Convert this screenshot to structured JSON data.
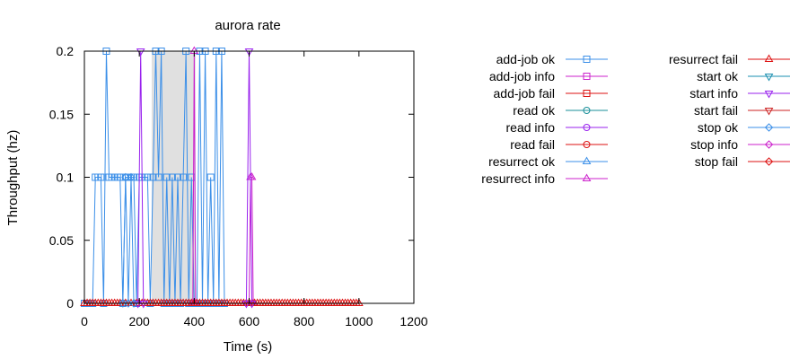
{
  "chart_data": {
    "type": "line",
    "title": "aurora rate",
    "xlabel": "Time (s)",
    "ylabel": "Throughput (hz)",
    "xlim": [
      0,
      1200
    ],
    "ylim": [
      0,
      0.2
    ],
    "xticks": [
      0,
      200,
      400,
      600,
      800,
      1000,
      1200
    ],
    "xtick_labels": [
      "0",
      "200",
      "400",
      "600",
      "800",
      "1000",
      "1200"
    ],
    "yticks": [
      0,
      0.05,
      0.1,
      0.15,
      0.2
    ],
    "ytick_labels": [
      "0",
      "0.05",
      "0.1",
      "0.15",
      "0.2"
    ],
    "shaded_interval": [
      245,
      405
    ],
    "legend_placement": "right, outside plot, two columns",
    "grid": false,
    "series": [
      {
        "name": "add-job ok",
        "color": "#3b8fe8",
        "marker": "square",
        "points": [
          [
            0,
            0
          ],
          [
            10,
            0
          ],
          [
            20,
            0
          ],
          [
            30,
            0
          ],
          [
            40,
            0.1
          ],
          [
            50,
            0.1
          ],
          [
            60,
            0.1
          ],
          [
            70,
            0
          ],
          [
            80,
            0.2
          ],
          [
            90,
            0.1
          ],
          [
            100,
            0.1
          ],
          [
            110,
            0.1
          ],
          [
            120,
            0.1
          ],
          [
            130,
            0.1
          ],
          [
            140,
            0
          ],
          [
            150,
            0.1
          ],
          [
            160,
            0.1
          ],
          [
            170,
            0.1
          ],
          [
            180,
            0.1
          ],
          [
            190,
            0
          ],
          [
            200,
            0.1
          ],
          [
            210,
            0.1
          ],
          [
            220,
            0.1
          ],
          [
            230,
            0.1
          ],
          [
            240,
            0
          ],
          [
            250,
            0.1
          ],
          [
            260,
            0.2
          ],
          [
            270,
            0.1
          ],
          [
            280,
            0.2
          ],
          [
            290,
            0
          ],
          [
            300,
            0.1
          ],
          [
            310,
            0
          ],
          [
            320,
            0.1
          ],
          [
            330,
            0
          ],
          [
            340,
            0.1
          ],
          [
            350,
            0
          ],
          [
            360,
            0.1
          ],
          [
            370,
            0.2
          ],
          [
            380,
            0
          ],
          [
            390,
            0.1
          ],
          [
            400,
            0
          ],
          [
            410,
            0
          ],
          [
            420,
            0.2
          ],
          [
            430,
            0
          ],
          [
            440,
            0.2
          ],
          [
            450,
            0
          ],
          [
            460,
            0.1
          ],
          [
            470,
            0
          ],
          [
            480,
            0.2
          ],
          [
            490,
            0
          ],
          [
            500,
            0.2
          ],
          [
            510,
            0
          ]
        ]
      },
      {
        "name": "add-job info",
        "color": "#cc22cc",
        "marker": "square",
        "points": []
      },
      {
        "name": "add-job fail",
        "color": "#dd1111",
        "marker": "square",
        "points": []
      },
      {
        "name": "read ok",
        "color": "#1a8f9a",
        "marker": "circle",
        "points": []
      },
      {
        "name": "read info",
        "color": "#9922ee",
        "marker": "circle",
        "points": []
      },
      {
        "name": "read fail",
        "color": "#dd1111",
        "marker": "circle",
        "points": []
      },
      {
        "name": "resurrect ok",
        "color": "#3b8fe8",
        "marker": "triangle-up",
        "points": []
      },
      {
        "name": "resurrect info",
        "color": "#cc22cc",
        "marker": "triangle-up",
        "points": [
          [
            395,
            0
          ],
          [
            400,
            0.2
          ],
          [
            405,
            0
          ],
          [
            600,
            0
          ],
          [
            605,
            0.1
          ],
          [
            610,
            0.1
          ],
          [
            615,
            0
          ]
        ]
      },
      {
        "name": "resurrect fail",
        "color": "#dd1111",
        "marker": "triangle-up",
        "points": [
          [
            0,
            0
          ],
          [
            10,
            0
          ],
          [
            20,
            0
          ],
          [
            30,
            0
          ],
          [
            40,
            0
          ],
          [
            50,
            0
          ],
          [
            60,
            0
          ],
          [
            70,
            0
          ],
          [
            80,
            0
          ],
          [
            90,
            0
          ],
          [
            100,
            0
          ],
          [
            110,
            0
          ],
          [
            120,
            0
          ],
          [
            130,
            0
          ],
          [
            140,
            0
          ],
          [
            150,
            0
          ],
          [
            160,
            0
          ],
          [
            170,
            0
          ],
          [
            180,
            0
          ],
          [
            190,
            0
          ],
          [
            200,
            0
          ],
          [
            210,
            0
          ],
          [
            220,
            0
          ],
          [
            230,
            0
          ],
          [
            240,
            0
          ],
          [
            250,
            0
          ],
          [
            260,
            0
          ],
          [
            270,
            0
          ],
          [
            280,
            0
          ],
          [
            290,
            0
          ],
          [
            300,
            0
          ],
          [
            310,
            0
          ],
          [
            320,
            0
          ],
          [
            330,
            0
          ],
          [
            340,
            0
          ],
          [
            350,
            0
          ],
          [
            360,
            0
          ],
          [
            370,
            0
          ],
          [
            380,
            0
          ],
          [
            390,
            0
          ],
          [
            400,
            0
          ],
          [
            410,
            0
          ],
          [
            420,
            0
          ],
          [
            430,
            0
          ],
          [
            440,
            0
          ],
          [
            450,
            0
          ],
          [
            460,
            0
          ],
          [
            470,
            0
          ],
          [
            480,
            0
          ],
          [
            490,
            0
          ],
          [
            500,
            0
          ],
          [
            510,
            0
          ],
          [
            520,
            0
          ],
          [
            530,
            0
          ],
          [
            540,
            0
          ],
          [
            550,
            0
          ],
          [
            560,
            0
          ],
          [
            570,
            0
          ],
          [
            580,
            0
          ],
          [
            590,
            0
          ],
          [
            600,
            0
          ],
          [
            610,
            0
          ],
          [
            620,
            0
          ],
          [
            630,
            0
          ],
          [
            640,
            0
          ],
          [
            650,
            0
          ],
          [
            660,
            0
          ],
          [
            670,
            0
          ],
          [
            680,
            0
          ],
          [
            690,
            0
          ],
          [
            700,
            0
          ],
          [
            710,
            0
          ],
          [
            720,
            0
          ],
          [
            730,
            0
          ],
          [
            740,
            0
          ],
          [
            750,
            0
          ],
          [
            760,
            0
          ],
          [
            770,
            0
          ],
          [
            780,
            0
          ],
          [
            790,
            0
          ],
          [
            800,
            0
          ],
          [
            810,
            0
          ],
          [
            820,
            0
          ],
          [
            830,
            0
          ],
          [
            840,
            0
          ],
          [
            850,
            0
          ],
          [
            860,
            0
          ],
          [
            870,
            0
          ],
          [
            880,
            0
          ],
          [
            890,
            0
          ],
          [
            900,
            0
          ],
          [
            910,
            0
          ],
          [
            920,
            0
          ],
          [
            930,
            0
          ],
          [
            940,
            0
          ],
          [
            950,
            0
          ],
          [
            960,
            0
          ],
          [
            970,
            0
          ],
          [
            980,
            0
          ],
          [
            990,
            0
          ],
          [
            1000,
            0
          ]
        ]
      },
      {
        "name": "start ok",
        "color": "#1a8fb0",
        "marker": "triangle-down",
        "points": []
      },
      {
        "name": "start info",
        "color": "#9922ee",
        "marker": "triangle-down",
        "points": [
          [
            195,
            0
          ],
          [
            205,
            0.2
          ],
          [
            215,
            0
          ],
          [
            590,
            0
          ],
          [
            600,
            0.2
          ],
          [
            610,
            0
          ]
        ]
      },
      {
        "name": "start fail",
        "color": "#cc2222",
        "marker": "triangle-down",
        "points": []
      },
      {
        "name": "stop ok",
        "color": "#3b8fe8",
        "marker": "diamond",
        "points": [
          [
            140,
            0
          ],
          [
            150,
            0.1
          ],
          [
            160,
            0
          ],
          [
            170,
            0.1
          ],
          [
            180,
            0
          ]
        ]
      },
      {
        "name": "stop info",
        "color": "#cc22cc",
        "marker": "diamond",
        "points": []
      },
      {
        "name": "stop fail",
        "color": "#dd1111",
        "marker": "diamond",
        "points": []
      }
    ]
  }
}
